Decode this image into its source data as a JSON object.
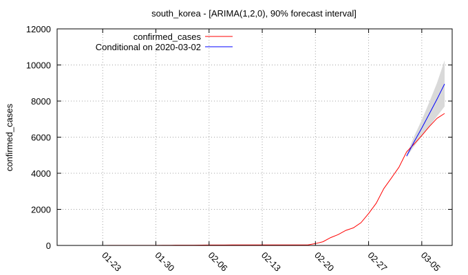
{
  "chart_data": {
    "type": "line",
    "title": "south_korea -  [ARIMA(1,2,0), 90% forecast interval]",
    "xlabel": "",
    "ylabel": "confirmed_cases",
    "xlim": [
      "2020-01-17",
      "2020-03-09"
    ],
    "ylim": [
      0,
      12000
    ],
    "y_ticks": [
      0,
      2000,
      4000,
      6000,
      8000,
      10000,
      12000
    ],
    "x_ticks": [
      {
        "date": "2020-01-23",
        "label": "01-23"
      },
      {
        "date": "2020-01-30",
        "label": "01-30"
      },
      {
        "date": "2020-02-06",
        "label": "02-06"
      },
      {
        "date": "2020-02-13",
        "label": "02-13"
      },
      {
        "date": "2020-02-20",
        "label": "02-20"
      },
      {
        "date": "2020-02-27",
        "label": "02-27"
      },
      {
        "date": "2020-03-05",
        "label": "03-05"
      }
    ],
    "grid": true,
    "legend_position": "top-left",
    "series": [
      {
        "name": "confirmed_cases",
        "color": "#ff0000",
        "x": [
          "2020-01-22",
          "2020-01-23",
          "2020-01-24",
          "2020-01-25",
          "2020-01-26",
          "2020-01-27",
          "2020-01-28",
          "2020-01-29",
          "2020-01-30",
          "2020-01-31",
          "2020-02-01",
          "2020-02-02",
          "2020-02-03",
          "2020-02-04",
          "2020-02-05",
          "2020-02-06",
          "2020-02-07",
          "2020-02-08",
          "2020-02-09",
          "2020-02-10",
          "2020-02-11",
          "2020-02-12",
          "2020-02-13",
          "2020-02-14",
          "2020-02-15",
          "2020-02-16",
          "2020-02-17",
          "2020-02-18",
          "2020-02-19",
          "2020-02-20",
          "2020-02-21",
          "2020-02-22",
          "2020-02-23",
          "2020-02-24",
          "2020-02-25",
          "2020-02-26",
          "2020-02-27",
          "2020-02-28",
          "2020-02-29",
          "2020-03-01",
          "2020-03-02",
          "2020-03-03",
          "2020-03-04",
          "2020-03-05",
          "2020-03-06",
          "2020-03-07",
          "2020-03-08"
        ],
        "values": [
          1,
          1,
          2,
          2,
          3,
          4,
          4,
          4,
          4,
          11,
          12,
          15,
          15,
          16,
          19,
          23,
          24,
          24,
          25,
          27,
          28,
          28,
          28,
          28,
          28,
          29,
          30,
          31,
          31,
          104,
          204,
          433,
          602,
          833,
          977,
          1261,
          1766,
          2337,
          3150,
          3736,
          4335,
          5186,
          5621,
          6088,
          6593,
          7041,
          7314
        ]
      },
      {
        "name": "Conditional on 2020-03-02",
        "color": "#0000ff",
        "x": [
          "2020-03-03",
          "2020-03-04",
          "2020-03-05",
          "2020-03-06",
          "2020-03-07",
          "2020-03-08"
        ],
        "values": [
          4950,
          5750,
          6500,
          7300,
          8100,
          8950
        ]
      }
    ],
    "forecast_interval": {
      "label": "90% forecast interval",
      "color": "#d9d9d9",
      "x": [
        "2020-03-03",
        "2020-03-04",
        "2020-03-05",
        "2020-03-06",
        "2020-03-07",
        "2020-03-08"
      ],
      "lower": [
        4900,
        5500,
        6050,
        6600,
        7150,
        7700
      ],
      "upper": [
        5050,
        6050,
        6950,
        7950,
        9000,
        10250
      ]
    }
  }
}
